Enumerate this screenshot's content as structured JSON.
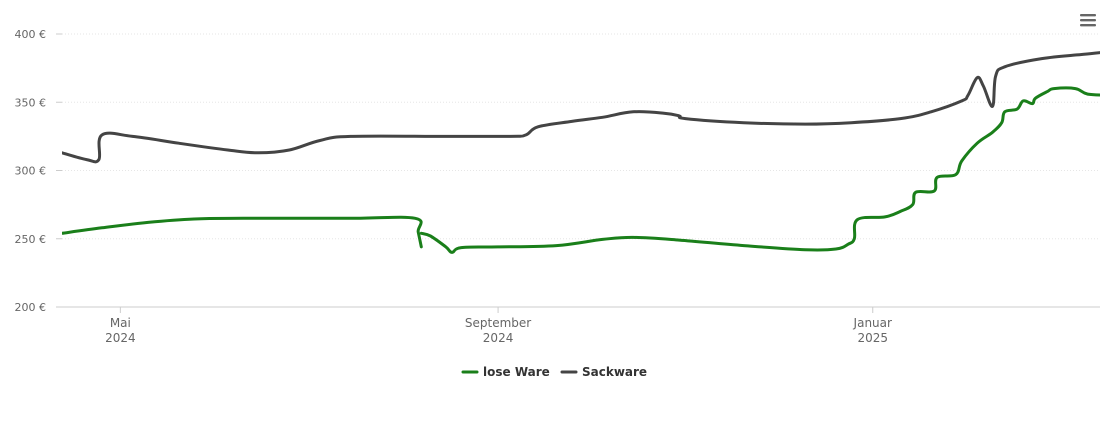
{
  "colors": {
    "lose_ware": "#1a7f1a",
    "sackware": "#444444",
    "grid": "#e6e6e6",
    "axis": "#cccccc",
    "menu": "#666666"
  },
  "menu": {
    "icon": "hamburger-menu-icon"
  },
  "chart_data": {
    "type": "line",
    "ylim": [
      200,
      400
    ],
    "yticks": [
      {
        "value": 400,
        "label": "400 €"
      },
      {
        "value": 350,
        "label": "350 €"
      },
      {
        "value": 300,
        "label": "300 €"
      },
      {
        "value": 250,
        "label": "250 €"
      },
      {
        "value": 200,
        "label": "200 €"
      }
    ],
    "xlim": [
      "2024-04-12",
      "2025-03-16"
    ],
    "xticks": [
      {
        "date": "2024-05-01",
        "month": "Mai",
        "year": "2024"
      },
      {
        "date": "2024-09-01",
        "month": "September",
        "year": "2024"
      },
      {
        "date": "2025-01-01",
        "month": "Januar",
        "year": "2025"
      }
    ],
    "grid": true,
    "legend_position": "bottom-center",
    "series": [
      {
        "name": "lose Ware",
        "color_key": "lose_ware",
        "segments": [
          [
            {
              "x": "2024-04-12",
              "y": 254
            },
            {
              "x": "2024-04-25",
              "y": 258
            },
            {
              "x": "2024-05-10",
              "y": 262
            },
            {
              "x": "2024-05-25",
              "y": 264.5
            },
            {
              "x": "2024-06-10",
              "y": 265
            },
            {
              "x": "2024-07-15",
              "y": 265
            },
            {
              "x": "2024-08-05",
              "y": 265
            },
            {
              "x": "2024-08-06",
              "y": 255
            },
            {
              "x": "2024-08-07",
              "y": 244
            }
          ],
          [
            {
              "x": "2024-08-07",
              "y": 254
            },
            {
              "x": "2024-08-10",
              "y": 252
            },
            {
              "x": "2024-08-15",
              "y": 244
            },
            {
              "x": "2024-08-17",
              "y": 240
            },
            {
              "x": "2024-08-20",
              "y": 243.5
            },
            {
              "x": "2024-09-01",
              "y": 244
            },
            {
              "x": "2024-09-20",
              "y": 245
            },
            {
              "x": "2024-10-05",
              "y": 249.5
            },
            {
              "x": "2024-10-15",
              "y": 251
            },
            {
              "x": "2024-10-30",
              "y": 249
            },
            {
              "x": "2024-11-20",
              "y": 245
            },
            {
              "x": "2024-12-10",
              "y": 242
            },
            {
              "x": "2024-12-20",
              "y": 242.5
            },
            {
              "x": "2024-12-24",
              "y": 246
            },
            {
              "x": "2024-12-26",
              "y": 250
            },
            {
              "x": "2024-12-27",
              "y": 264
            },
            {
              "x": "2025-01-05",
              "y": 266
            },
            {
              "x": "2025-01-10",
              "y": 270
            },
            {
              "x": "2025-01-14",
              "y": 275
            },
            {
              "x": "2025-01-15",
              "y": 284
            },
            {
              "x": "2025-01-21",
              "y": 285
            },
            {
              "x": "2025-01-22",
              "y": 295
            },
            {
              "x": "2025-01-28",
              "y": 297
            },
            {
              "x": "2025-01-30",
              "y": 307
            },
            {
              "x": "2025-02-04",
              "y": 320
            },
            {
              "x": "2025-02-09",
              "y": 328
            },
            {
              "x": "2025-02-12",
              "y": 335
            },
            {
              "x": "2025-02-13",
              "y": 343
            },
            {
              "x": "2025-02-17",
              "y": 345
            },
            {
              "x": "2025-02-19",
              "y": 351
            },
            {
              "x": "2025-02-22",
              "y": 349
            },
            {
              "x": "2025-02-23",
              "y": 353
            },
            {
              "x": "2025-02-27",
              "y": 358
            },
            {
              "x": "2025-03-01",
              "y": 360
            },
            {
              "x": "2025-03-08",
              "y": 360
            },
            {
              "x": "2025-03-12",
              "y": 356
            },
            {
              "x": "2025-03-20",
              "y": 355
            },
            {
              "x": "2025-03-28",
              "y": 353
            },
            {
              "x": "2025-03-31",
              "y": 345
            },
            {
              "x": "2025-04-02",
              "y": 343
            },
            {
              "x": "2025-04-06",
              "y": 324
            },
            {
              "x": "2025-04-12",
              "y": 316
            },
            {
              "x": "2025-04-14",
              "y": 307
            },
            {
              "x": "2025-04-17",
              "y": 305
            },
            {
              "x": "2025-04-22",
              "y": 305
            }
          ]
        ]
      },
      {
        "name": "Sackware",
        "color_key": "sackware",
        "segments": [
          [
            {
              "x": "2024-04-12",
              "y": 313
            },
            {
              "x": "2024-04-20",
              "y": 308
            },
            {
              "x": "2024-04-24",
              "y": 308
            },
            {
              "x": "2024-04-25",
              "y": 326
            },
            {
              "x": "2024-05-05",
              "y": 325
            },
            {
              "x": "2024-05-20",
              "y": 320
            },
            {
              "x": "2024-06-05",
              "y": 315
            },
            {
              "x": "2024-06-15",
              "y": 313
            },
            {
              "x": "2024-06-25",
              "y": 315
            },
            {
              "x": "2024-07-05",
              "y": 322
            },
            {
              "x": "2024-07-15",
              "y": 325
            },
            {
              "x": "2024-08-15",
              "y": 325
            },
            {
              "x": "2024-09-05",
              "y": 325
            },
            {
              "x": "2024-09-10",
              "y": 326
            },
            {
              "x": "2024-09-14",
              "y": 332
            },
            {
              "x": "2024-09-25",
              "y": 336
            },
            {
              "x": "2024-10-05",
              "y": 339
            },
            {
              "x": "2024-10-15",
              "y": 343
            },
            {
              "x": "2024-10-25",
              "y": 342
            },
            {
              "x": "2024-10-30",
              "y": 340
            },
            {
              "x": "2024-11-01",
              "y": 338
            },
            {
              "x": "2024-11-20",
              "y": 335
            },
            {
              "x": "2024-12-10",
              "y": 334
            },
            {
              "x": "2024-12-25",
              "y": 335
            },
            {
              "x": "2025-01-10",
              "y": 338
            },
            {
              "x": "2025-01-20",
              "y": 343
            },
            {
              "x": "2025-01-30",
              "y": 351
            },
            {
              "x": "2025-02-01",
              "y": 355
            },
            {
              "x": "2025-02-04",
              "y": 368
            },
            {
              "x": "2025-02-06",
              "y": 362
            },
            {
              "x": "2025-02-09",
              "y": 347
            },
            {
              "x": "2025-02-10",
              "y": 369
            },
            {
              "x": "2025-02-13",
              "y": 376
            },
            {
              "x": "2025-02-25",
              "y": 382
            },
            {
              "x": "2025-03-10",
              "y": 385
            },
            {
              "x": "2025-03-25",
              "y": 388
            },
            {
              "x": "2025-03-27",
              "y": 385
            },
            {
              "x": "2025-03-28",
              "y": 369
            },
            {
              "x": "2025-04-05",
              "y": 370
            },
            {
              "x": "2025-04-15",
              "y": 374
            },
            {
              "x": "2025-04-20",
              "y": 371
            },
            {
              "x": "2025-04-28",
              "y": 357
            }
          ]
        ]
      }
    ]
  }
}
